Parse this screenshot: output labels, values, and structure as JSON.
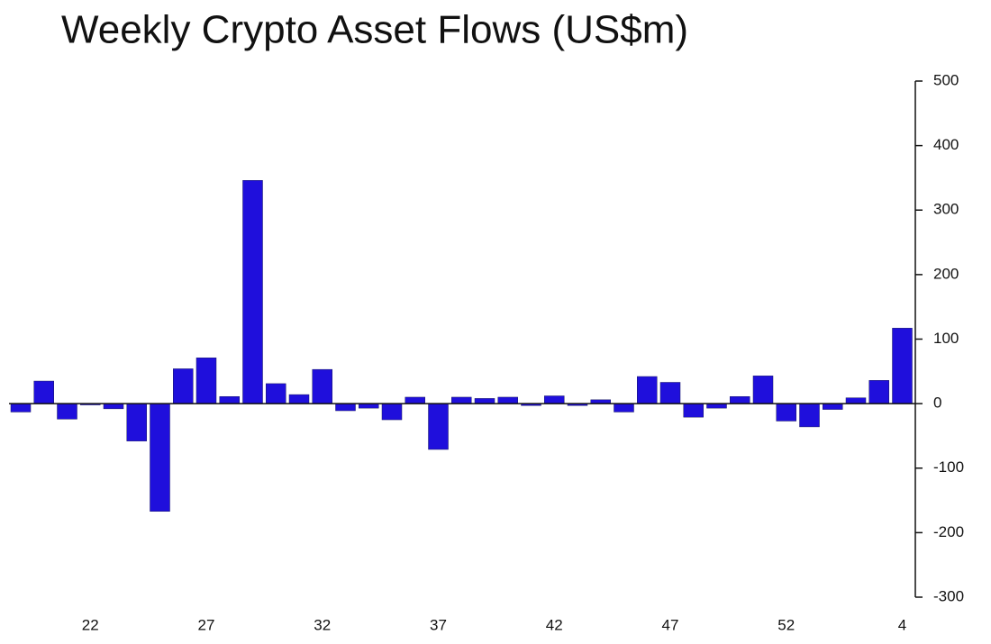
{
  "chart_data": {
    "type": "bar",
    "title": "Weekly Crypto Asset Flows (US$m)",
    "categories": [
      null,
      null,
      null,
      "22",
      null,
      null,
      null,
      null,
      "27",
      null,
      null,
      null,
      null,
      "32",
      null,
      null,
      null,
      null,
      "37",
      null,
      null,
      null,
      null,
      "42",
      null,
      null,
      null,
      null,
      "47",
      null,
      null,
      null,
      null,
      "52",
      null,
      null,
      null,
      null,
      "4"
    ],
    "values": [
      -13,
      35,
      -24,
      -2,
      -8,
      -58,
      -167,
      54,
      71,
      11,
      346,
      31,
      14,
      53,
      -11,
      -7,
      -25,
      10,
      -71,
      10,
      8,
      10,
      -3,
      12,
      -3,
      6,
      -13,
      42,
      33,
      -21,
      -7,
      11,
      43,
      -27,
      -36,
      -9,
      9,
      36,
      117
    ],
    "color": "#1f0fdc",
    "ylim": [
      -300,
      500
    ],
    "yticks": [
      -300,
      -200,
      -100,
      0,
      100,
      200,
      300,
      400,
      500
    ],
    "y_axis_side": "right"
  }
}
